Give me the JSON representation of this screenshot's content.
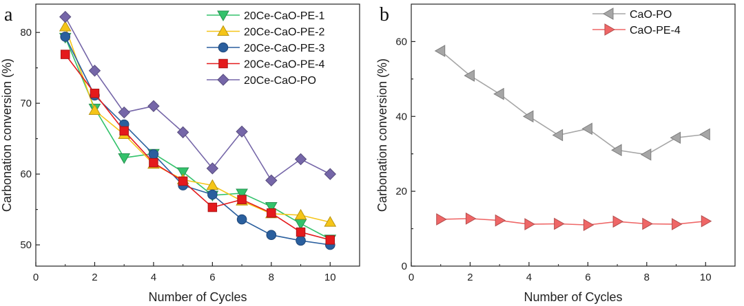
{
  "colors": {
    "PE-1": "#33c26b",
    "PE-2": "#f5c518",
    "PE-3": "#2a5f9e",
    "PE-4": "#e41a1c",
    "PO": "#7566a8",
    "CaO-PO": "#a6a6a6",
    "CaO-PE-4": "#ef6666"
  },
  "chart_data": [
    {
      "type": "line",
      "panel_label": "a",
      "xlabel": "Number of Cycles",
      "ylabel": "Carbonation conversion (%)",
      "xlim": [
        0,
        11
      ],
      "ylim": [
        47,
        84
      ],
      "xticks": [
        "0",
        "2",
        "4",
        "6",
        "8",
        "10"
      ],
      "yticks": [
        "50",
        "60",
        "70",
        "80"
      ],
      "legend_position": "top-right",
      "x": [
        1,
        2,
        3,
        4,
        5,
        6,
        7,
        8,
        9,
        10
      ],
      "series": [
        {
          "name": "20Ce-CaO-PE-1",
          "marker": "triangle-down",
          "color_key": "PE-1",
          "values": [
            79.3,
            69.3,
            62.3,
            62.9,
            60.3,
            57.0,
            57.3,
            55.4,
            53.0,
            50.8
          ]
        },
        {
          "name": "20Ce-CaO-PE-2",
          "marker": "triangle-up",
          "color_key": "PE-2",
          "values": [
            80.8,
            69.0,
            65.6,
            61.4,
            59.2,
            58.4,
            56.2,
            54.4,
            54.2,
            53.2
          ]
        },
        {
          "name": "20Ce-CaO-PE-3",
          "marker": "circle",
          "color_key": "PE-3",
          "values": [
            79.4,
            71.1,
            67.0,
            62.8,
            58.4,
            57.1,
            53.6,
            51.4,
            50.6,
            50.0
          ]
        },
        {
          "name": "20Ce-CaO-PE-4",
          "marker": "square",
          "color_key": "PE-4",
          "values": [
            76.9,
            71.4,
            66.1,
            61.6,
            59.0,
            55.3,
            56.4,
            54.5,
            51.8,
            50.7
          ]
        },
        {
          "name": "20Ce-CaO-PO",
          "marker": "diamond",
          "color_key": "PO",
          "values": [
            82.2,
            74.6,
            68.7,
            69.6,
            65.9,
            60.8,
            66.0,
            59.1,
            62.1,
            60.0
          ]
        }
      ]
    },
    {
      "type": "line",
      "panel_label": "b",
      "xlabel": "Number of Cycles",
      "ylabel": "Carbonation conversion (%)",
      "xlim": [
        0,
        11
      ],
      "ylim": [
        0,
        70
      ],
      "xticks": [
        "0",
        "2",
        "4",
        "6",
        "8",
        "10"
      ],
      "yticks": [
        "0",
        "20",
        "40",
        "60"
      ],
      "legend_position": "top-left",
      "x": [
        1,
        2,
        3,
        4,
        5,
        6,
        7,
        8,
        9,
        10
      ],
      "series": [
        {
          "name": "CaO-PO",
          "marker": "triangle-left",
          "color_key": "CaO-PO",
          "values": [
            57.5,
            50.9,
            46.0,
            40.0,
            35.0,
            36.7,
            31.0,
            29.8,
            34.3,
            35.2
          ]
        },
        {
          "name": "CaO-PE-4",
          "marker": "triangle-right",
          "color_key": "CaO-PE-4",
          "values": [
            12.5,
            12.7,
            12.2,
            11.2,
            11.3,
            11.0,
            11.9,
            11.3,
            11.2,
            12.0
          ]
        }
      ]
    }
  ]
}
